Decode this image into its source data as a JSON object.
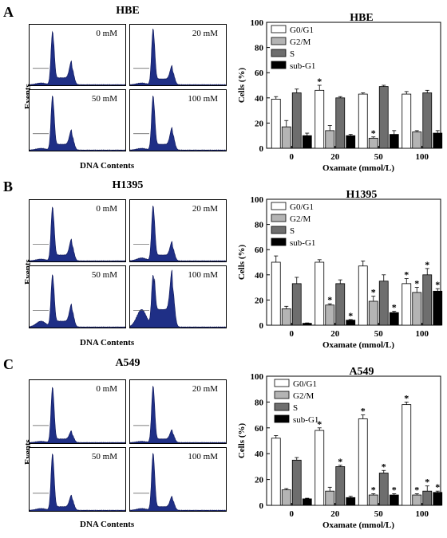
{
  "rows": [
    {
      "letter": "A",
      "cell_line": "HBE",
      "doses": [
        "0 mM",
        "20 mM",
        "50 mM",
        "100 mM"
      ]
    },
    {
      "letter": "B",
      "cell_line": "H1395",
      "doses": [
        "0 mM",
        "20 mM",
        "50 mM",
        "100 mM"
      ]
    },
    {
      "letter": "C",
      "cell_line": "A549",
      "doses": [
        "0 mM",
        "20 mM",
        "50 mM",
        "100 mM"
      ]
    }
  ],
  "axis_text": {
    "events": "Events",
    "dna": "DNA Contents"
  },
  "colors": {
    "histogram_fill": "#1f2f86",
    "G0G1": "#ffffff",
    "G2M": "#b4b4b4",
    "S": "#6e6e6e",
    "subG1": "#000000"
  },
  "chart_data": [
    {
      "type": "bar",
      "title": "HBE",
      "categories": [
        "0",
        "20",
        "50",
        "100"
      ],
      "xlabel": "Oxamate (mmol/L)",
      "ylabel": "Cells (%)",
      "ylim": [
        0,
        100
      ],
      "yticks": [
        0,
        20,
        40,
        60,
        80,
        100
      ],
      "legend": "top-left",
      "series": [
        {
          "name": "G0/G1",
          "values": [
            39,
            46,
            43,
            43
          ],
          "errors": [
            2,
            4,
            1,
            2
          ],
          "sig": [
            false,
            true,
            false,
            false
          ]
        },
        {
          "name": "G2/M",
          "values": [
            17,
            14,
            8,
            13
          ],
          "errors": [
            5,
            4,
            1,
            1
          ],
          "sig": [
            false,
            false,
            true,
            false
          ]
        },
        {
          "name": "S",
          "values": [
            44,
            40,
            49,
            44
          ],
          "errors": [
            3,
            1,
            1,
            2
          ],
          "sig": [
            false,
            false,
            false,
            false
          ]
        },
        {
          "name": "sub-G1",
          "values": [
            10,
            10,
            11,
            12
          ],
          "errors": [
            2,
            1,
            3,
            2
          ],
          "sig": [
            false,
            false,
            false,
            false
          ]
        }
      ]
    },
    {
      "type": "bar",
      "title": "H1395",
      "categories": [
        "0",
        "20",
        "50",
        "100"
      ],
      "xlabel": "Oxamate (mmol/L)",
      "ylabel": "Cells (%)",
      "ylim": [
        0,
        100
      ],
      "yticks": [
        0,
        20,
        40,
        60,
        80,
        100
      ],
      "legend": "top-left",
      "series": [
        {
          "name": "G0/G1",
          "values": [
            50,
            50,
            47,
            33
          ],
          "errors": [
            5,
            2,
            4,
            4
          ],
          "sig": [
            false,
            false,
            false,
            true
          ]
        },
        {
          "name": "G2/M",
          "values": [
            13,
            16,
            19,
            26
          ],
          "errors": [
            2,
            1,
            4,
            4
          ],
          "sig": [
            false,
            true,
            true,
            true
          ]
        },
        {
          "name": "S",
          "values": [
            33,
            33,
            35,
            40
          ],
          "errors": [
            5,
            3,
            5,
            5
          ],
          "sig": [
            false,
            false,
            false,
            true
          ]
        },
        {
          "name": "sub-G1",
          "values": [
            1.5,
            4,
            10,
            27
          ],
          "errors": [
            0.3,
            0.5,
            1,
            2
          ],
          "sig": [
            false,
            true,
            true,
            true
          ]
        }
      ]
    },
    {
      "type": "bar",
      "title": "A549",
      "categories": [
        "0",
        "20",
        "50",
        "100"
      ],
      "xlabel": "Oxamate  (mmol/L)",
      "ylabel": "Cells (%)",
      "ylim": [
        0,
        100
      ],
      "yticks": [
        0,
        20,
        40,
        60,
        80,
        100
      ],
      "legend": "top-right",
      "series": [
        {
          "name": "G0/G1",
          "values": [
            52,
            58,
            67,
            78
          ],
          "errors": [
            2,
            2,
            3,
            2
          ],
          "sig": [
            false,
            true,
            true,
            true
          ]
        },
        {
          "name": "G2/M",
          "values": [
            12,
            11,
            8,
            8
          ],
          "errors": [
            1,
            3,
            1,
            1
          ],
          "sig": [
            false,
            false,
            true,
            true
          ]
        },
        {
          "name": "S",
          "values": [
            35,
            30,
            25,
            11
          ],
          "errors": [
            2,
            1,
            2,
            4
          ],
          "sig": [
            false,
            true,
            true,
            true
          ]
        },
        {
          "name": "sub-G1",
          "values": [
            5,
            6,
            8,
            10
          ],
          "errors": [
            0.5,
            1,
            1,
            1
          ],
          "sig": [
            false,
            false,
            true,
            true
          ]
        }
      ]
    }
  ]
}
